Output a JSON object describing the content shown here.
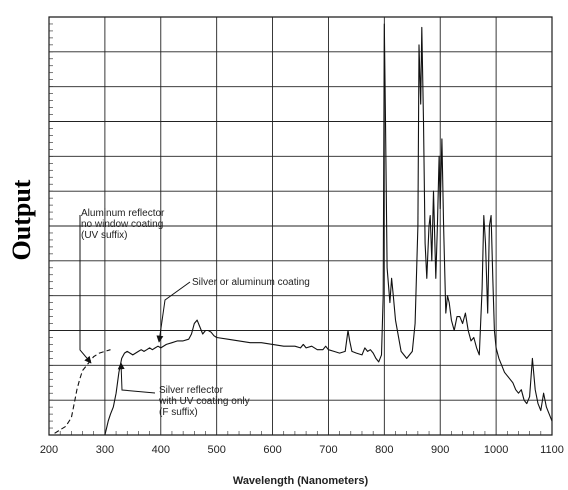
{
  "chart_data": {
    "type": "line",
    "title": "",
    "xlabel": "Wavelength (Nanometers)",
    "ylabel": "Output",
    "xlim": [
      200,
      1100
    ],
    "x_ticks": [
      200,
      300,
      400,
      500,
      600,
      700,
      800,
      900,
      1000,
      1100
    ],
    "y_scale": "relative (no values printed)",
    "grid": true,
    "legend": "none",
    "series": [
      {
        "style": "dashed",
        "x": [
          210,
          220,
          230,
          240,
          245,
          250,
          255,
          260,
          265,
          270,
          275,
          280,
          290,
          300,
          310
        ],
        "y": [
          0.5,
          1.5,
          2.5,
          5,
          9,
          13,
          16,
          18.5,
          19.5,
          20.5,
          21.5,
          22.5,
          23.5,
          24,
          24.5
        ]
      },
      {
        "style": "solid",
        "x": [
          300,
          303,
          306,
          310,
          315,
          320,
          325,
          330,
          335,
          340,
          345,
          350,
          355,
          360,
          365,
          370,
          375,
          380,
          385,
          390,
          395,
          400,
          410,
          420,
          430,
          440,
          450,
          455,
          460,
          465,
          470,
          475,
          480,
          485,
          490,
          495,
          500,
          520,
          540,
          560,
          580,
          600,
          620,
          640,
          650,
          655,
          660,
          670,
          680,
          690,
          695,
          700,
          710,
          720,
          730,
          735,
          738,
          742,
          750,
          760,
          765,
          770,
          775,
          780,
          785,
          790,
          795,
          798,
          800,
          802,
          805,
          810,
          813,
          816,
          820,
          830,
          840,
          850,
          855,
          860,
          862,
          865,
          867,
          870,
          873,
          876,
          880,
          882,
          885,
          888,
          892,
          895,
          898,
          900,
          903,
          906,
          910,
          913,
          916,
          920,
          925,
          930,
          935,
          940,
          945,
          950,
          955,
          960,
          965,
          970,
          975,
          978,
          981,
          985,
          988,
          991,
          994,
          997,
          1000,
          1005,
          1010,
          1015,
          1020,
          1025,
          1030,
          1035,
          1040,
          1045,
          1050,
          1055,
          1060,
          1065,
          1070,
          1075,
          1080,
          1085,
          1090,
          1095,
          1100
        ],
        "y": [
          0,
          2,
          4,
          6,
          8,
          12,
          18,
          22,
          23.5,
          24,
          23.5,
          23,
          23.5,
          24,
          24.5,
          24,
          24.5,
          25,
          24.5,
          25,
          25.5,
          25,
          26,
          26.5,
          27,
          27,
          27.5,
          29,
          32,
          33,
          31,
          29,
          30,
          30,
          29.5,
          28.5,
          28,
          27.5,
          27,
          26.5,
          26.5,
          26,
          25.5,
          25.5,
          25,
          26,
          25,
          25.5,
          24.5,
          24.5,
          25.5,
          24.5,
          24,
          23.5,
          24,
          30,
          27,
          24,
          23.5,
          23,
          25,
          24,
          24.5,
          23.5,
          22,
          21,
          23,
          40,
          118,
          90,
          48,
          38,
          45,
          40,
          33,
          24,
          22,
          24,
          32,
          60,
          112,
          95,
          117,
          90,
          55,
          45,
          60,
          63,
          50,
          70,
          45,
          60,
          80,
          65,
          85,
          60,
          35,
          40,
          38,
          33,
          30,
          34,
          34,
          32,
          35,
          30,
          27,
          28,
          25,
          23,
          42,
          63,
          55,
          35,
          60,
          63,
          45,
          30,
          25,
          22,
          20,
          18,
          17,
          16,
          15,
          13,
          12,
          13,
          10,
          9,
          11,
          22,
          13,
          9,
          7,
          12,
          8,
          6,
          4
        ]
      }
    ],
    "annotations": [
      {
        "lines": [
          "Aluminum reflector",
          "no window coating",
          "(UV suffix)"
        ]
      },
      {
        "lines": [
          "Silver or aluminum coating"
        ]
      },
      {
        "lines": [
          "Silver reflector",
          "with UV coating only",
          "(F suffix)"
        ]
      }
    ]
  }
}
